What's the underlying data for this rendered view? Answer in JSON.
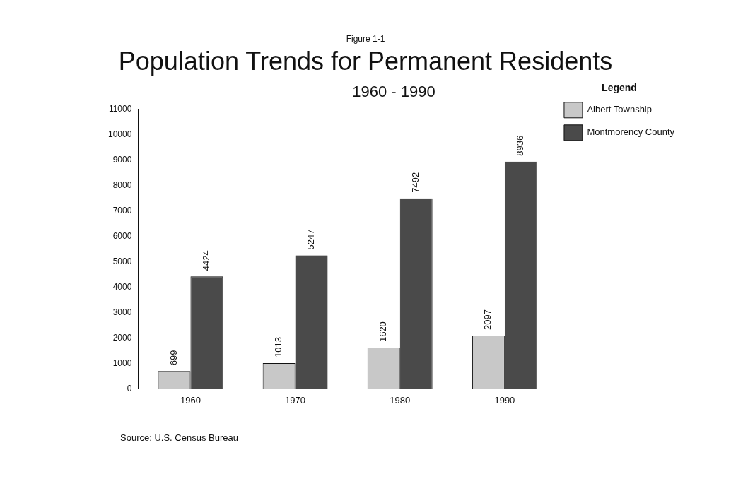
{
  "chart_data": {
    "type": "bar",
    "title": "Population Trends for Permanent Residents",
    "subtitle": "1960 - 1990",
    "legend_title": "Legend",
    "annotations": [
      "Figure 1-1",
      "Source: U.S. Census Bureau"
    ],
    "categories": [
      "1960",
      "1970",
      "1980",
      "1990"
    ],
    "series": [
      {
        "name": "Albert Township",
        "color": "#c8c8c8",
        "values": [
          699,
          1013,
          1620,
          2097
        ]
      },
      {
        "name": "Montmorency County",
        "color": "#4a4a4a",
        "values": [
          4424,
          5247,
          7492,
          8936
        ]
      }
    ],
    "ylim": [
      0,
      11000
    ],
    "yticks": [
      0,
      1000,
      2000,
      3000,
      4000,
      5000,
      6000,
      7000,
      8000,
      9000,
      10000,
      11000
    ],
    "grid": false,
    "legend": "top right",
    "data_labels": true
  }
}
